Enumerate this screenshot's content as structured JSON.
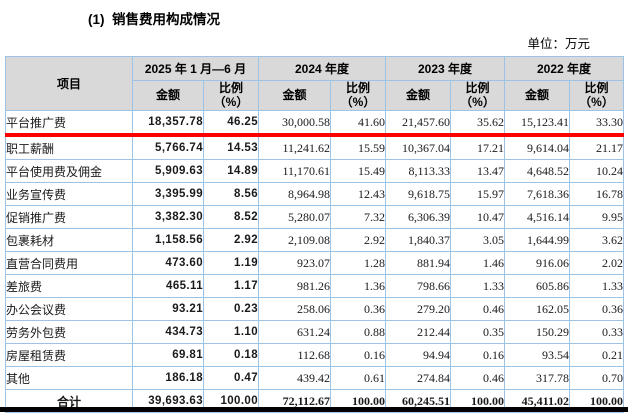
{
  "title": "(1)  销售费用构成情况",
  "unit_label": "单位：万元",
  "table": {
    "col_item": "项目",
    "period_headers": [
      "2025 年 1 月—6 月",
      "2024 年度",
      "2023 年度",
      "2022 年度"
    ],
    "sub_headers": {
      "amount": "金额",
      "ratio": "比例\n（%）"
    },
    "rows": [
      {
        "item": "平台推广费",
        "values": [
          "18,357.78",
          "46.25",
          "30,000.58",
          "41.60",
          "21,457.60",
          "35.62",
          "15,123.41",
          "33.30"
        ],
        "highlight": true
      },
      {
        "item": "职工薪酬",
        "values": [
          "5,766.74",
          "14.53",
          "11,241.62",
          "15.59",
          "10,367.04",
          "17.21",
          "9,614.04",
          "21.17"
        ]
      },
      {
        "item": "平台使用费及佣金",
        "values": [
          "5,909.63",
          "14.89",
          "11,170.61",
          "15.49",
          "8,113.33",
          "13.47",
          "4,648.52",
          "10.24"
        ]
      },
      {
        "item": "业务宣传费",
        "values": [
          "3,395.99",
          "8.56",
          "8,964.98",
          "12.43",
          "9,618.75",
          "15.97",
          "7,618.36",
          "16.78"
        ]
      },
      {
        "item": "促销推广费",
        "values": [
          "3,382.30",
          "8.52",
          "5,280.07",
          "7.32",
          "6,306.39",
          "10.47",
          "4,516.14",
          "9.95"
        ]
      },
      {
        "item": "包裹耗材",
        "values": [
          "1,158.56",
          "2.92",
          "2,109.08",
          "2.92",
          "1,840.37",
          "3.05",
          "1,644.99",
          "3.62"
        ]
      },
      {
        "item": "直营合同费用",
        "values": [
          "473.60",
          "1.19",
          "923.07",
          "1.28",
          "881.94",
          "1.46",
          "916.06",
          "2.02"
        ]
      },
      {
        "item": "差旅费",
        "values": [
          "465.11",
          "1.17",
          "981.26",
          "1.36",
          "798.66",
          "1.33",
          "605.86",
          "1.33"
        ]
      },
      {
        "item": "办公会议费",
        "values": [
          "93.21",
          "0.23",
          "258.06",
          "0.36",
          "279.20",
          "0.46",
          "162.05",
          "0.36"
        ]
      },
      {
        "item": "劳务外包费",
        "values": [
          "434.73",
          "1.10",
          "631.24",
          "0.88",
          "212.44",
          "0.35",
          "150.29",
          "0.33"
        ]
      },
      {
        "item": "房屋租赁费",
        "values": [
          "69.81",
          "0.18",
          "112.68",
          "0.16",
          "94.94",
          "0.16",
          "93.54",
          "0.21"
        ]
      },
      {
        "item": "其他",
        "values": [
          "186.18",
          "0.47",
          "439.42",
          "0.61",
          "274.84",
          "0.46",
          "317.78",
          "0.70"
        ]
      },
      {
        "item": "合计",
        "values": [
          "39,693.63",
          "100.00",
          "72,112.67",
          "100.00",
          "60,245.51",
          "100.00",
          "45,411.02",
          "100.00"
        ],
        "total": true
      }
    ],
    "colors": {
      "border": "#9dc3e6",
      "header_bg": "#d9d9d9",
      "highlight_line": "#fe0000",
      "bottom_rule": "#000000"
    }
  }
}
